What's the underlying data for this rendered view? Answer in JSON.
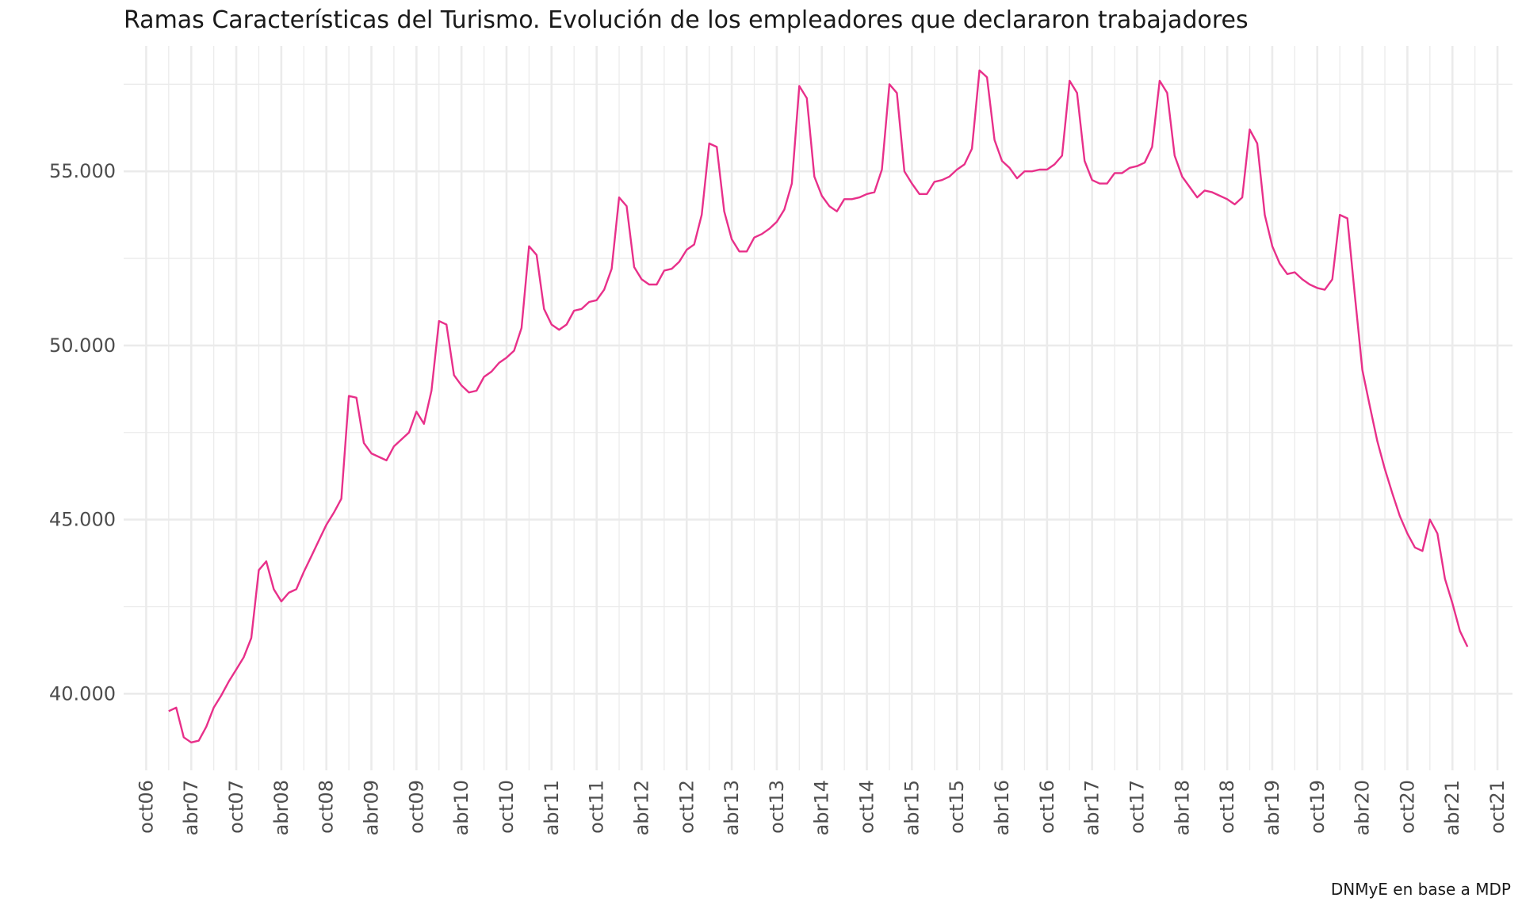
{
  "chart_data": {
    "type": "line",
    "title": "Ramas Características del Turismo. Evolución de los empleadores que declararon trabajadores",
    "caption": "DNMyE en base a MDP",
    "xlabel": "",
    "ylabel": "",
    "x_ticks": [
      "oct06",
      "abr07",
      "oct07",
      "abr08",
      "oct08",
      "abr09",
      "oct09",
      "abr10",
      "oct10",
      "abr11",
      "oct11",
      "abr12",
      "oct12",
      "abr13",
      "oct13",
      "abr14",
      "oct14",
      "abr15",
      "oct15",
      "abr16",
      "oct16",
      "abr17",
      "oct17",
      "abr18",
      "oct18",
      "abr19",
      "oct19",
      "abr20",
      "oct20",
      "abr21",
      "oct21"
    ],
    "y_ticks": [
      "40.000",
      "45.000",
      "50.000",
      "55.000"
    ],
    "y_tick_values": [
      40000,
      45000,
      50000,
      55000
    ],
    "ylim": [
      37800,
      58600
    ],
    "xlim": [
      "2006-07",
      "2021-12"
    ],
    "grid": true,
    "line_color": "#E8308A",
    "series": [
      {
        "x": [
          "2007-01",
          "2007-02",
          "2007-03",
          "2007-04",
          "2007-05",
          "2007-06",
          "2007-07",
          "2007-08",
          "2007-09",
          "2007-10",
          "2007-11",
          "2007-12",
          "2008-01",
          "2008-02",
          "2008-03",
          "2008-04",
          "2008-05",
          "2008-06",
          "2008-07",
          "2008-08",
          "2008-09",
          "2008-10",
          "2008-11",
          "2008-12",
          "2009-01",
          "2009-02",
          "2009-03",
          "2009-04",
          "2009-05",
          "2009-06",
          "2009-07",
          "2009-08",
          "2009-09",
          "2009-10",
          "2009-11",
          "2009-12",
          "2010-01",
          "2010-02",
          "2010-03",
          "2010-04",
          "2010-05",
          "2010-06",
          "2010-07",
          "2010-08",
          "2010-09",
          "2010-10",
          "2010-11",
          "2010-12",
          "2011-01",
          "2011-02",
          "2011-03",
          "2011-04",
          "2011-05",
          "2011-06",
          "2011-07",
          "2011-08",
          "2011-09",
          "2011-10",
          "2011-11",
          "2011-12",
          "2012-01",
          "2012-02",
          "2012-03",
          "2012-04",
          "2012-05",
          "2012-06",
          "2012-07",
          "2012-08",
          "2012-09",
          "2012-10",
          "2012-11",
          "2012-12",
          "2013-01",
          "2013-02",
          "2013-03",
          "2013-04",
          "2013-05",
          "2013-06",
          "2013-07",
          "2013-08",
          "2013-09",
          "2013-10",
          "2013-11",
          "2013-12",
          "2014-01",
          "2014-02",
          "2014-03",
          "2014-04",
          "2014-05",
          "2014-06",
          "2014-07",
          "2014-08",
          "2014-09",
          "2014-10",
          "2014-11",
          "2014-12",
          "2015-01",
          "2015-02",
          "2015-03",
          "2015-04",
          "2015-05",
          "2015-06",
          "2015-07",
          "2015-08",
          "2015-09",
          "2015-10",
          "2015-11",
          "2015-12",
          "2016-01",
          "2016-02",
          "2016-03",
          "2016-04",
          "2016-05",
          "2016-06",
          "2016-07",
          "2016-08",
          "2016-09",
          "2016-10",
          "2016-11",
          "2016-12",
          "2017-01",
          "2017-02",
          "2017-03",
          "2017-04",
          "2017-05",
          "2017-06",
          "2017-07",
          "2017-08",
          "2017-09",
          "2017-10",
          "2017-11",
          "2017-12",
          "2018-01",
          "2018-02",
          "2018-03",
          "2018-04",
          "2018-05",
          "2018-06",
          "2018-07",
          "2018-08",
          "2018-09",
          "2018-10",
          "2018-11",
          "2018-12",
          "2019-01",
          "2019-02",
          "2019-03",
          "2019-04",
          "2019-05",
          "2019-06",
          "2019-07",
          "2019-08",
          "2019-09",
          "2019-10",
          "2019-11",
          "2019-12",
          "2020-01",
          "2020-02",
          "2020-03",
          "2020-04",
          "2020-05",
          "2020-06",
          "2020-07",
          "2020-08",
          "2020-09",
          "2020-10",
          "2020-11",
          "2020-12",
          "2021-01",
          "2021-02",
          "2021-03",
          "2021-04",
          "2021-05",
          "2021-06"
        ],
        "values": [
          39500,
          39600,
          38750,
          38600,
          38650,
          39050,
          39600,
          39950,
          40350,
          40700,
          41050,
          41600,
          43550,
          43800,
          43000,
          42650,
          42900,
          43000,
          43500,
          43950,
          44400,
          44850,
          45200,
          45600,
          48550,
          48500,
          47200,
          46900,
          46800,
          46700,
          47100,
          47300,
          47500,
          48100,
          47750,
          48700,
          50700,
          50600,
          49150,
          48850,
          48650,
          48700,
          49100,
          49250,
          49500,
          49650,
          49850,
          50500,
          52850,
          52600,
          51050,
          50600,
          50450,
          50600,
          51000,
          51050,
          51250,
          51300,
          51600,
          52200,
          54250,
          54000,
          52250,
          51900,
          51750,
          51750,
          52150,
          52200,
          52400,
          52750,
          52900,
          53750,
          55800,
          55700,
          53850,
          53050,
          52700,
          52700,
          53100,
          53200,
          53350,
          53550,
          53900,
          54650,
          57450,
          57100,
          54850,
          54300,
          54000,
          53850,
          54200,
          54200,
          54250,
          54350,
          54400,
          55050,
          57500,
          57250,
          55000,
          54650,
          54350,
          54350,
          54700,
          54750,
          54850,
          55050,
          55200,
          55650,
          57900,
          57700,
          55900,
          55300,
          55100,
          54800,
          55000,
          55000,
          55050,
          55050,
          55200,
          55450,
          57600,
          57250,
          55300,
          54750,
          54650,
          54650,
          54950,
          54950,
          55100,
          55150,
          55250,
          55700,
          57600,
          57250,
          55450,
          54850,
          54550,
          54250,
          54450,
          54400,
          54300,
          54200,
          54050,
          54250,
          56200,
          55800,
          53750,
          52850,
          52350,
          52050,
          52100,
          51900,
          51750,
          51650,
          51600,
          51900,
          53750,
          53650,
          51450,
          49300,
          48250,
          47250,
          46450,
          45750,
          45100,
          44600,
          44200,
          44100,
          45000,
          44600,
          43300,
          42600,
          41800,
          41350
        ]
      }
    ]
  }
}
